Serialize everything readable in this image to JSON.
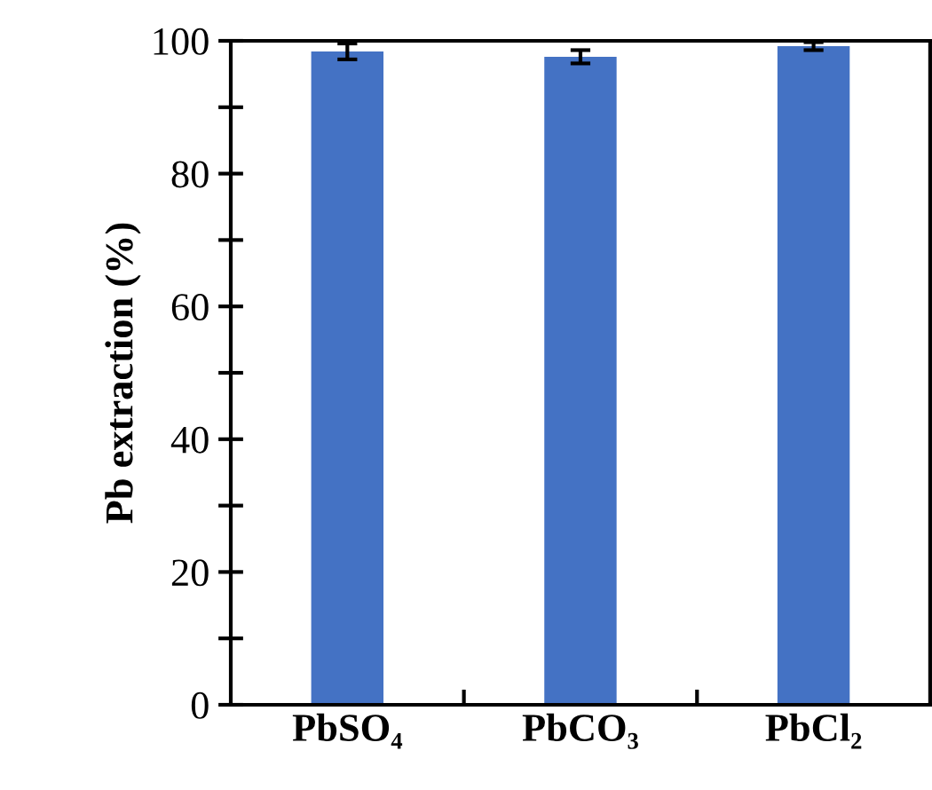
{
  "chart_data": {
    "type": "bar",
    "ylabel": "Pb extraction (%)",
    "categories": [
      "PbSO₄",
      "PbCO₃",
      "PbCl₂"
    ],
    "values": [
      98.4,
      97.6,
      99.2
    ],
    "errors": [
      1.2,
      1.0,
      0.6
    ],
    "color": "#4472c4",
    "ylim": [
      0,
      100
    ],
    "yticks": [
      0,
      {
        "value": 10,
        "label": null
      },
      20,
      {
        "value": 30,
        "label": null
      },
      40,
      {
        "value": 50,
        "label": null
      },
      60,
      {
        "value": 70,
        "label": null
      },
      80,
      {
        "value": 90,
        "label": null
      },
      100
    ],
    "grid": false
  }
}
